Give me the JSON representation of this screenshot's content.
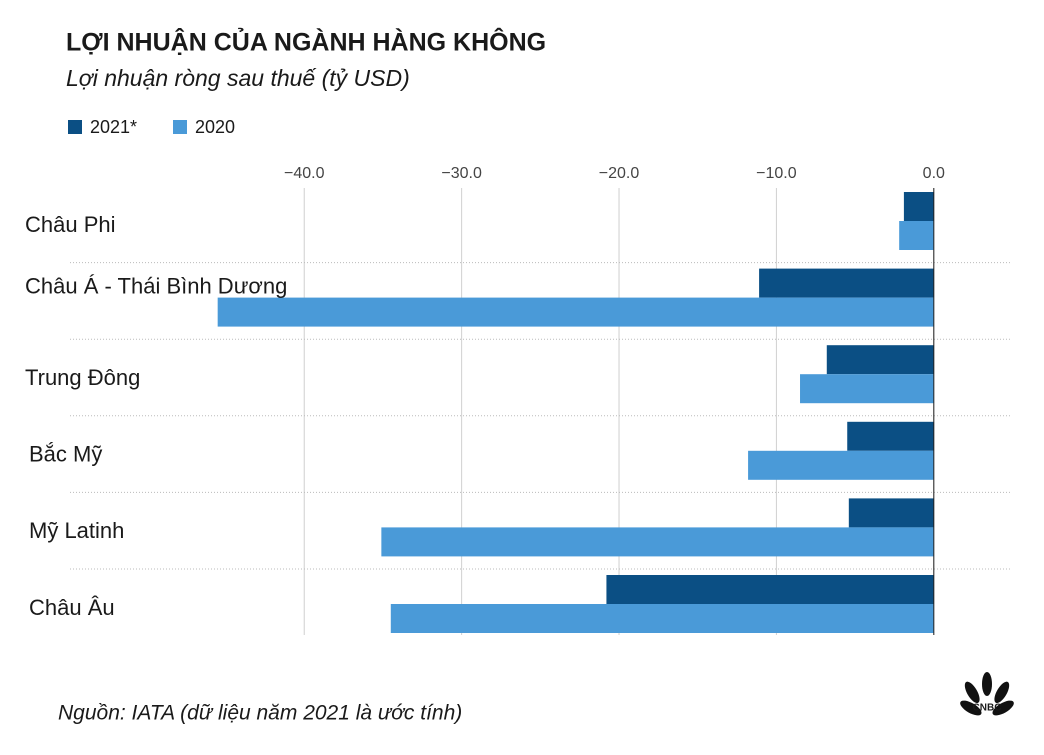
{
  "chart_data": {
    "type": "bar",
    "orientation": "horizontal",
    "title": "LỢI NHUẬN CỦA NGÀNH HÀNG KHÔNG",
    "subtitle": "Lợi nhuận ròng sau thuế (tỷ USD)",
    "source": "Nguồn: IATA (dữ liệu năm 2021 là ước tính)",
    "logo": "CNBC",
    "categories": [
      "Châu Phi",
      "Châu Á - Thái Bình Dương",
      "Trung Đông",
      "Bắc Mỹ",
      "Mỹ Latinh",
      "Châu Âu"
    ],
    "series": [
      {
        "name": "2021*",
        "color": "#0b4f84",
        "values": [
          -1.9,
          -11.1,
          -6.8,
          -5.5,
          -5.4,
          -20.8
        ]
      },
      {
        "name": "2020",
        "color": "#4a9ad8",
        "values": [
          -2.2,
          -45.5,
          -8.5,
          -11.8,
          -35.1,
          -34.5
        ]
      }
    ],
    "xlim": [
      -46,
      5
    ],
    "xticks": [
      {
        "value": -40,
        "label": "−40.0"
      },
      {
        "value": -30,
        "label": "−30.0"
      },
      {
        "value": -20,
        "label": "−20.0"
      },
      {
        "value": -10,
        "label": "−10.0"
      },
      {
        "value": 0,
        "label": "0.0"
      }
    ],
    "grid": true,
    "legend": "top-left"
  }
}
